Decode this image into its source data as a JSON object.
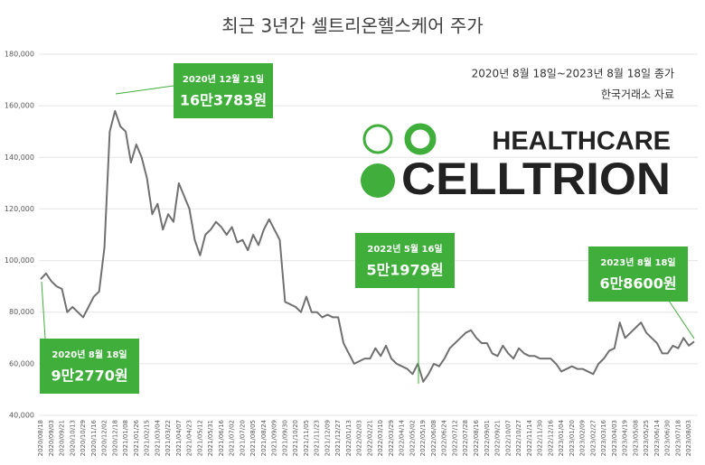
{
  "chart_data": {
    "type": "line",
    "title": "최근 3년간 셀트리온헬스케어 주가",
    "subtitle": "2020년 8월 18일~2023년 8월 18일 종가",
    "source": "한국거래소 자료",
    "logo": {
      "top": "HEALTHCARE",
      "bottom": "CELLTRION"
    },
    "categories": [
      "2020/08/18",
      null,
      "2020/09/03",
      null,
      "2020/09/21",
      null,
      "2020/10/13",
      null,
      "2020/10/29",
      null,
      "2020/11/16",
      null,
      "2020/12/02",
      null,
      "2020/12/18",
      null,
      "2021/01/08",
      null,
      "2021/01/26",
      null,
      "2021/02/15",
      null,
      "2021/03/04",
      null,
      "2021/03/22",
      null,
      "2021/04/07",
      null,
      "2021/04/23",
      null,
      "2021/05/12",
      null,
      "2021/05/31",
      null,
      "2021/06/16",
      null,
      "2021/07/02",
      null,
      "2021/07/20",
      null,
      "2021/08/05",
      null,
      "2021/08/24",
      null,
      "2021/09/09",
      null,
      "2021/09/30",
      null,
      "2021/10/20",
      null,
      "2021/11/05",
      null,
      "2021/11/23",
      null,
      "2021/12/09",
      null,
      "2021/12/27",
      null,
      "2022/01/13",
      null,
      "2022/02/03",
      null,
      "2022/02/21",
      null,
      "2022/03/10",
      null,
      "2022/03/29",
      null,
      "2022/04/14",
      null,
      "2022/05/02",
      null,
      "2022/05/19",
      null,
      "2022/06/08",
      null,
      "2022/06/24",
      null,
      "2022/07/12",
      null,
      "2022/07/28",
      null,
      "2022/08/16",
      null,
      "2022/09/01",
      null,
      "2022/09/21",
      null,
      "2022/10/07",
      null,
      "2022/10/27",
      null,
      "2022/11/14",
      null,
      "2022/11/30",
      null,
      "2022/12/16",
      null,
      "2023/01/04",
      null,
      "2023/01/20",
      null,
      "2023/02/09",
      null,
      "2023/02/27",
      null,
      "2023/03/16",
      null,
      "2023/04/03",
      null,
      "2023/04/19",
      null,
      "2023/05/08",
      null,
      "2023/05/25",
      null,
      "2023/06/14",
      null,
      "2023/06/30",
      null,
      "2023/07/18",
      null,
      "2023/08/03",
      null
    ],
    "series": [
      {
        "name": "셀트리온헬스케어",
        "color": "#707070",
        "values": [
          92770,
          95000,
          92000,
          90000,
          89000,
          80000,
          82000,
          80000,
          78000,
          82000,
          86000,
          88000,
          105000,
          150000,
          158000,
          152000,
          150000,
          138000,
          145000,
          140000,
          132000,
          118000,
          122000,
          112000,
          118000,
          115000,
          130000,
          125000,
          120000,
          108000,
          102000,
          110000,
          112000,
          115000,
          113000,
          110000,
          113000,
          107000,
          108000,
          104000,
          110000,
          106000,
          112000,
          116000,
          112000,
          108000,
          84000,
          83000,
          82000,
          80000,
          86000,
          80000,
          80000,
          78000,
          79000,
          78000,
          78000,
          68000,
          64000,
          60000,
          61000,
          62000,
          62000,
          66000,
          63000,
          67000,
          62000,
          60000,
          59000,
          58000,
          56000,
          60000,
          53000,
          56000,
          60000,
          59000,
          62000,
          66000,
          68000,
          70000,
          72000,
          73000,
          70000,
          68000,
          68000,
          64000,
          63000,
          67000,
          64000,
          62000,
          66000,
          64000,
          63000,
          63000,
          62000,
          62000,
          62000,
          60000,
          57000,
          58000,
          59000,
          58000,
          58000,
          57000,
          56000,
          60000,
          62000,
          65000,
          66000,
          76000,
          70000,
          72000,
          74000,
          76000,
          72000,
          70000,
          68000,
          64000,
          64000,
          67000,
          66000,
          70000,
          67000,
          68600
        ]
      }
    ],
    "ylim": [
      40000,
      180000
    ],
    "yticks": [
      {
        "value": 40000,
        "label": "40,000"
      },
      {
        "value": 60000,
        "label": "60,000"
      },
      {
        "value": 80000,
        "label": "80,000"
      },
      {
        "value": 100000,
        "label": "100,000"
      },
      {
        "value": 120000,
        "label": "120,000"
      },
      {
        "value": 140000,
        "label": "140,000"
      },
      {
        "value": 160000,
        "label": "160,000"
      },
      {
        "value": 180000,
        "label": "180,000"
      }
    ],
    "grid": true,
    "annotations": [
      {
        "date": "2020년 8월 18일",
        "price": "9만2770원"
      },
      {
        "date": "2020년 12월 21일",
        "price": "16만3783원"
      },
      {
        "date": "2022년 5월 16일",
        "price": "5만1979원"
      },
      {
        "date": "2023년 8월 18일",
        "price": "6만8600원"
      }
    ]
  }
}
